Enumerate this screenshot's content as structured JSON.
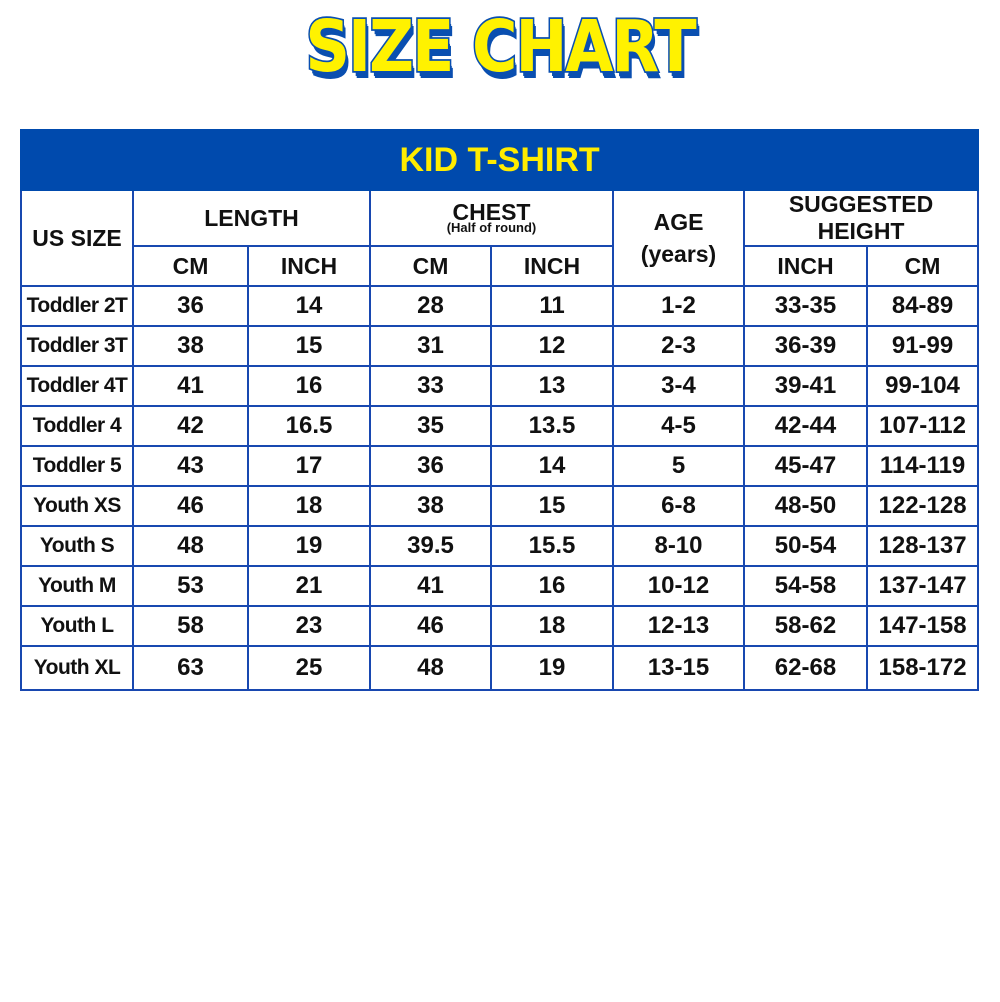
{
  "title": "SIZE CHART",
  "table": {
    "heading": "KID T-SHIRT",
    "headers": {
      "us_size": "US SIZE",
      "length": "LENGTH",
      "chest": "CHEST",
      "chest_note": "(Half of round)",
      "age": "AGE",
      "age_unit": "(years)",
      "height": "SUGGESTED HEIGHT",
      "cm": "CM",
      "inch": "INCH"
    },
    "rows": [
      [
        "Toddler 2T",
        "36",
        "14",
        "28",
        "11",
        "1-2",
        "33-35",
        "84-89"
      ],
      [
        "Toddler 3T",
        "38",
        "15",
        "31",
        "12",
        "2-3",
        "36-39",
        "91-99"
      ],
      [
        "Toddler 4T",
        "41",
        "16",
        "33",
        "13",
        "3-4",
        "39-41",
        "99-104"
      ],
      [
        "Toddler 4",
        "42",
        "16.5",
        "35",
        "13.5",
        "4-5",
        "42-44",
        "107-112"
      ],
      [
        "Toddler 5",
        "43",
        "17",
        "36",
        "14",
        "5",
        "45-47",
        "114-119"
      ],
      [
        "Youth XS",
        "46",
        "18",
        "38",
        "15",
        "6-8",
        "48-50",
        "122-128"
      ],
      [
        "Youth S",
        "48",
        "19",
        "39.5",
        "15.5",
        "8-10",
        "50-54",
        "128-137"
      ],
      [
        "Youth M",
        "53",
        "21",
        "41",
        "16",
        "10-12",
        "54-58",
        "137-147"
      ],
      [
        "Youth L",
        "58",
        "23",
        "46",
        "18",
        "12-13",
        "58-62",
        "147-158"
      ],
      [
        "Youth XL",
        "63",
        "25",
        "48",
        "19",
        "13-15",
        "62-68",
        "158-172"
      ]
    ]
  },
  "colors": {
    "title_fill": "#fff200",
    "title_outline": "#0a4fb0",
    "band": "#004aad",
    "band_text": "#ffec00",
    "grid": "#1848b0"
  }
}
